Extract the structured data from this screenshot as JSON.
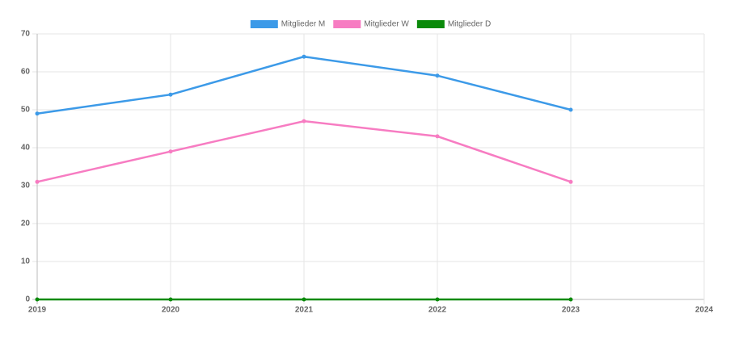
{
  "chart_data": {
    "type": "line",
    "x": [
      2019,
      2020,
      2021,
      2022,
      2023
    ],
    "series": [
      {
        "name": "Mitglieder M",
        "color": "#3c9ae8",
        "values": [
          49,
          54,
          64,
          59,
          50
        ]
      },
      {
        "name": "Mitglieder W",
        "color": "#f77cc2",
        "values": [
          31,
          39,
          47,
          43,
          31
        ]
      },
      {
        "name": "Mitglieder D",
        "color": "#0a8a0a",
        "values": [
          0,
          0,
          0,
          0,
          0
        ]
      }
    ],
    "xlim": [
      2019,
      2024
    ],
    "xticks": [
      2019,
      2020,
      2021,
      2022,
      2023,
      2024
    ],
    "ylim": [
      0,
      70
    ],
    "yticks": [
      0,
      10,
      20,
      30,
      40,
      50,
      60,
      70
    ],
    "grid": true,
    "legend": "top"
  }
}
